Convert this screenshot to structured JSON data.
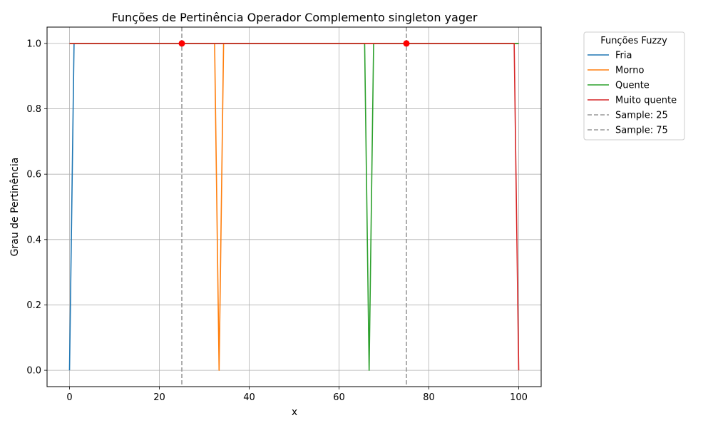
{
  "chart_data": {
    "type": "line",
    "title": "Funções de Pertinência Operador Complemento singleton yager",
    "xlabel": "x",
    "ylabel": "Grau de Pertinência",
    "xlim": [
      -5,
      105
    ],
    "ylim": [
      -0.05,
      1.05
    ],
    "xticks": [
      0,
      20,
      40,
      60,
      80,
      100
    ],
    "yticks": [
      0.0,
      0.2,
      0.4,
      0.6,
      0.8,
      1.0
    ],
    "xtick_labels": [
      "0",
      "20",
      "40",
      "60",
      "80",
      "100"
    ],
    "ytick_labels": [
      "0.0",
      "0.2",
      "0.4",
      "0.6",
      "0.8",
      "1.0"
    ],
    "grid": true,
    "legend": {
      "title": "Funções Fuzzy",
      "placement": "outside upper right"
    },
    "series": [
      {
        "name": "Fria",
        "color": "#1f77b4",
        "points": [
          [
            0,
            0.0
          ],
          [
            1.01,
            1.0
          ],
          [
            100,
            1.0
          ]
        ]
      },
      {
        "name": "Morno",
        "color": "#ff7f0e",
        "points": [
          [
            0,
            1.0
          ],
          [
            32.3,
            1.0
          ],
          [
            33.3,
            0.0
          ],
          [
            34.3,
            1.0
          ],
          [
            100,
            1.0
          ]
        ]
      },
      {
        "name": "Quente",
        "color": "#2ca02c",
        "points": [
          [
            0,
            1.0
          ],
          [
            65.7,
            1.0
          ],
          [
            66.7,
            0.0
          ],
          [
            67.7,
            1.0
          ],
          [
            100,
            1.0
          ]
        ]
      },
      {
        "name": "Muito quente",
        "color": "#d62728",
        "points": [
          [
            0,
            1.0
          ],
          [
            98.99,
            1.0
          ],
          [
            100,
            0.0
          ]
        ]
      }
    ],
    "vlines": [
      {
        "name": "Sample: 25",
        "x": 25,
        "color": "#999999",
        "style": "dashed"
      },
      {
        "name": "Sample: 75",
        "x": 75,
        "color": "#999999",
        "style": "dashed"
      }
    ],
    "markers": [
      {
        "x": 25,
        "y": 1.0,
        "color": "#ff0000"
      },
      {
        "x": 75,
        "y": 1.0,
        "color": "#ff0000"
      }
    ]
  }
}
